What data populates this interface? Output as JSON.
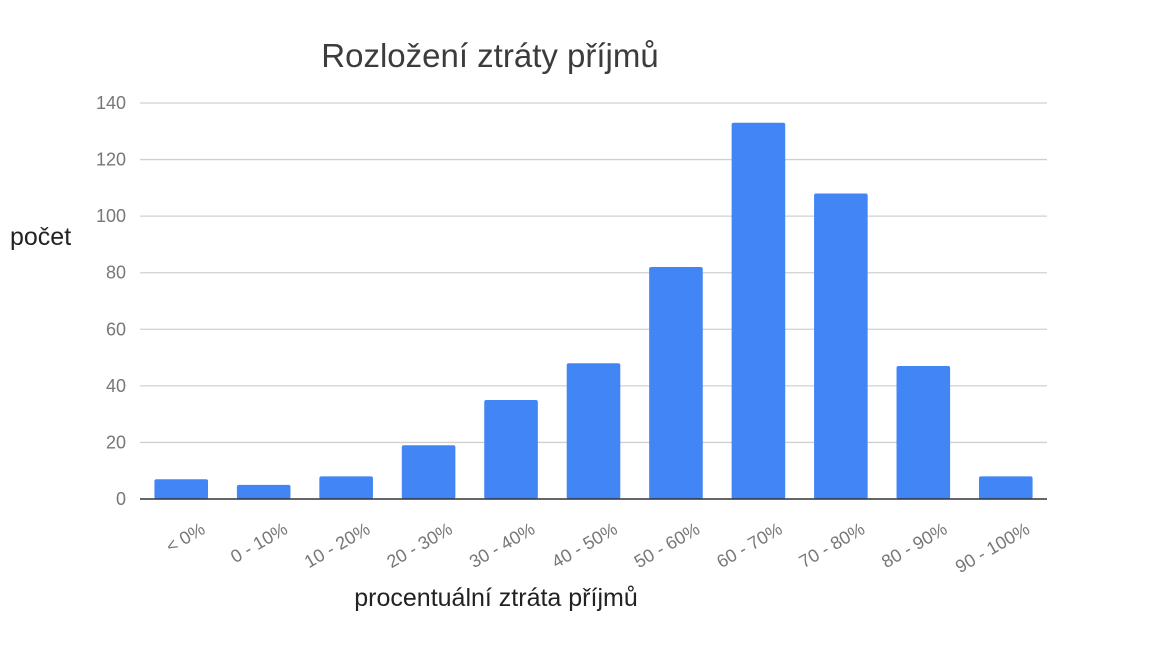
{
  "chart_data": {
    "type": "bar",
    "title": "Rozložení ztráty příjmů",
    "xlabel": "procentuální ztráta příjmů",
    "ylabel": "počet",
    "categories": [
      "< 0%",
      "0 - 10%",
      "10 - 20%",
      "20 - 30%",
      "30 - 40%",
      "40 - 50%",
      "50 - 60%",
      "60 - 70%",
      "70 - 80%",
      "80 - 90%",
      "90 - 100%"
    ],
    "values": [
      7,
      5,
      8,
      19,
      35,
      48,
      82,
      133,
      108,
      47,
      8
    ],
    "ylim": [
      0,
      140
    ],
    "yticks": [
      "0",
      "20",
      "40",
      "60",
      "80",
      "100",
      "120",
      "140"
    ],
    "grid": true,
    "legend": "none",
    "bar_color": "#4285f4"
  }
}
